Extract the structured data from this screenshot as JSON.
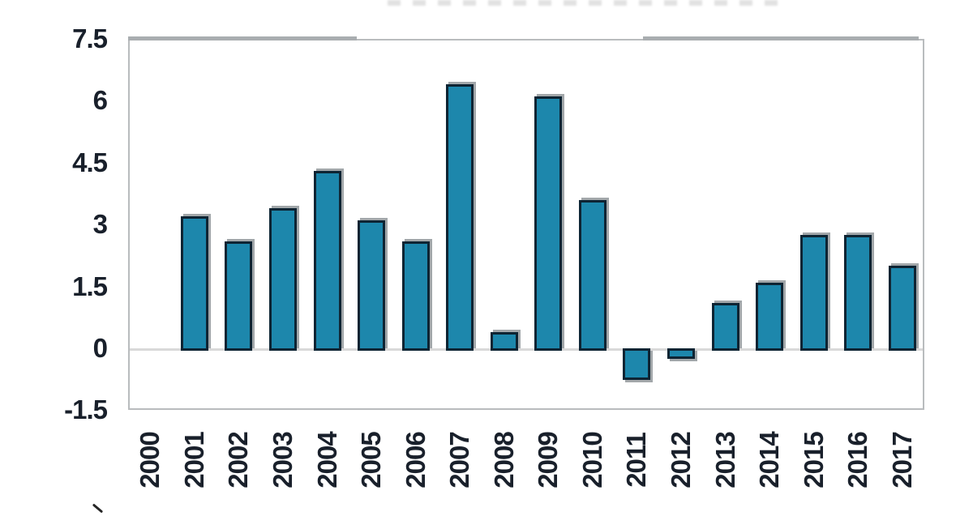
{
  "chart_data": {
    "type": "bar",
    "title": "",
    "xlabel": "",
    "ylabel": "",
    "categories": [
      "2000",
      "2001",
      "2002",
      "2003",
      "2004",
      "2005",
      "2006",
      "2007",
      "2008",
      "2009",
      "2010",
      "2011",
      "2012",
      "2013",
      "2014",
      "2015",
      "2016",
      "2017"
    ],
    "values": [
      0,
      3.2,
      2.6,
      3.4,
      4.3,
      3.1,
      2.6,
      6.4,
      0.4,
      6.1,
      3.6,
      -0.7,
      -0.2,
      1.1,
      1.6,
      2.75,
      2.75,
      2.0
    ],
    "ylim": [
      -1.5,
      7.5
    ],
    "yticks": [
      7.5,
      6,
      4.5,
      3,
      1.5,
      0,
      -1.5
    ],
    "ytick_labels": [
      "7.5",
      "6",
      "4.5",
      "3",
      "1.5",
      "0",
      "-1.5"
    ],
    "x_tick_rotation_deg": -90,
    "grid": "horizontal zero line only",
    "legend": "none",
    "colors": {
      "bar_fill": "#1d87ac",
      "bar_border": "#0e2433",
      "bar_shadow": "#a2a7aa",
      "zero_gridline": "#d9d9d9",
      "plot_frame": "#b9bcbe",
      "tick_text": "#19202b",
      "top_border_segments": "#a9adb0",
      "background": "#ffffff"
    }
  }
}
